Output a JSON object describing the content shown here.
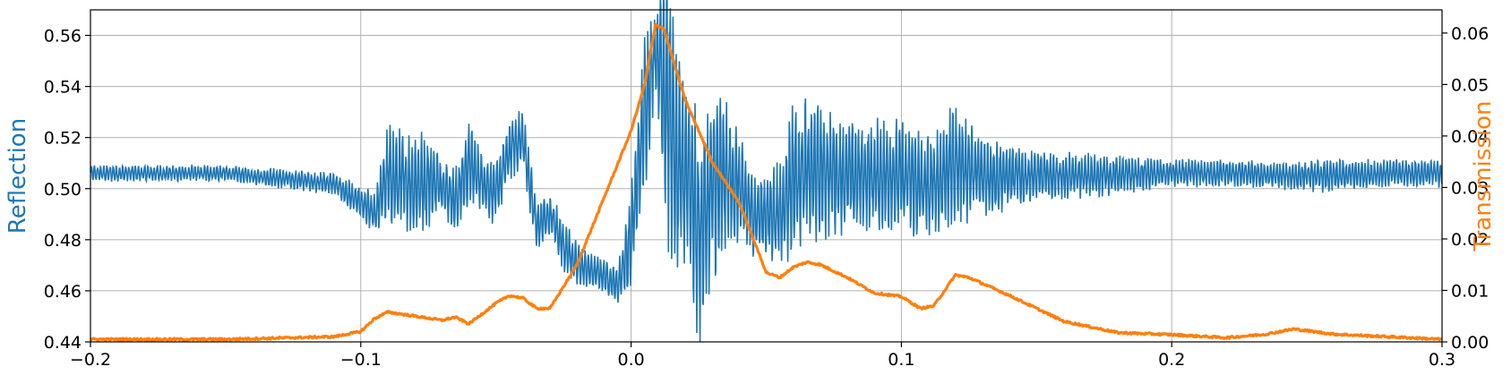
{
  "chart_data": {
    "type": "line",
    "title": "",
    "xlabel": "",
    "xlim": [
      -0.2,
      0.3
    ],
    "x_ticks": [
      -0.2,
      -0.1,
      0.0,
      0.1,
      0.2,
      0.3
    ],
    "x_tick_labels": [
      "−0.2",
      "−0.1",
      "0.0",
      "0.1",
      "0.2",
      "0.3"
    ],
    "grid": true,
    "legend": "none",
    "y_left": {
      "label": "Reflection",
      "color": "#1f77b4",
      "ylim": [
        0.44,
        0.57
      ],
      "ticks": [
        0.44,
        0.46,
        0.48,
        0.5,
        0.52,
        0.54,
        0.56
      ],
      "tick_labels": [
        "0.44",
        "0.46",
        "0.48",
        "0.50",
        "0.52",
        "0.54",
        "0.56"
      ]
    },
    "y_right": {
      "label": "Transmission",
      "color": "#ff7f0e",
      "ylim": [
        0.0,
        0.0645
      ],
      "ticks": [
        0.0,
        0.01,
        0.02,
        0.03,
        0.04,
        0.05,
        0.06
      ],
      "tick_labels": [
        "0.00",
        "0.01",
        "0.02",
        "0.03",
        "0.04",
        "0.05",
        "0.06"
      ]
    },
    "series": [
      {
        "axis": "left",
        "color": "#1f77b4",
        "x": [
          -0.2,
          -0.15,
          -0.11,
          -0.095,
          -0.09,
          -0.085,
          -0.08,
          -0.075,
          -0.07,
          -0.065,
          -0.06,
          -0.055,
          -0.05,
          -0.045,
          -0.04,
          -0.035,
          -0.03,
          -0.025,
          -0.02,
          -0.015,
          -0.01,
          -0.005,
          0.0,
          0.005,
          0.009,
          0.013,
          0.017,
          0.021,
          0.025,
          0.03,
          0.035,
          0.04,
          0.045,
          0.05,
          0.055,
          0.06,
          0.07,
          0.08,
          0.09,
          0.1,
          0.11,
          0.12,
          0.13,
          0.14,
          0.15,
          0.17,
          0.2,
          0.22,
          0.24,
          0.26,
          0.28,
          0.3
        ],
        "center": [
          0.506,
          0.506,
          0.502,
          0.49,
          0.505,
          0.503,
          0.502,
          0.503,
          0.502,
          0.495,
          0.51,
          0.503,
          0.498,
          0.515,
          0.52,
          0.485,
          0.49,
          0.478,
          0.47,
          0.468,
          0.466,
          0.462,
          0.48,
          0.53,
          0.555,
          0.54,
          0.505,
          0.51,
          0.48,
          0.5,
          0.505,
          0.5,
          0.49,
          0.49,
          0.49,
          0.505,
          0.507,
          0.505,
          0.505,
          0.505,
          0.5,
          0.51,
          0.505,
          0.505,
          0.505,
          0.505,
          0.506,
          0.506,
          0.505,
          0.505,
          0.506,
          0.506
        ],
        "amplitude": [
          0.003,
          0.003,
          0.004,
          0.008,
          0.018,
          0.018,
          0.018,
          0.018,
          0.01,
          0.012,
          0.015,
          0.01,
          0.012,
          0.012,
          0.01,
          0.01,
          0.008,
          0.01,
          0.008,
          0.006,
          0.006,
          0.006,
          0.02,
          0.03,
          0.015,
          0.055,
          0.04,
          0.035,
          0.04,
          0.035,
          0.03,
          0.02,
          0.015,
          0.015,
          0.02,
          0.03,
          0.025,
          0.02,
          0.02,
          0.02,
          0.02,
          0.022,
          0.015,
          0.012,
          0.01,
          0.008,
          0.005,
          0.005,
          0.005,
          0.006,
          0.005,
          0.005
        ]
      },
      {
        "axis": "right",
        "color": "#ff7f0e",
        "x": [
          -0.2,
          -0.15,
          -0.11,
          -0.1,
          -0.095,
          -0.09,
          -0.08,
          -0.07,
          -0.065,
          -0.06,
          -0.05,
          -0.045,
          -0.04,
          -0.035,
          -0.03,
          -0.02,
          -0.01,
          0.0,
          0.005,
          0.009,
          0.012,
          0.02,
          0.03,
          0.04,
          0.05,
          0.055,
          0.06,
          0.065,
          0.07,
          0.08,
          0.09,
          0.1,
          0.107,
          0.112,
          0.12,
          0.125,
          0.14,
          0.16,
          0.18,
          0.2,
          0.22,
          0.235,
          0.245,
          0.26,
          0.28,
          0.3
        ],
        "y": [
          0.0005,
          0.0005,
          0.001,
          0.002,
          0.0045,
          0.0058,
          0.005,
          0.0042,
          0.0048,
          0.0035,
          0.0075,
          0.009,
          0.0085,
          0.0065,
          0.0065,
          0.015,
          0.028,
          0.041,
          0.05,
          0.0615,
          0.061,
          0.047,
          0.035,
          0.027,
          0.0135,
          0.0125,
          0.0145,
          0.0155,
          0.015,
          0.0125,
          0.0095,
          0.0088,
          0.0065,
          0.007,
          0.013,
          0.0125,
          0.009,
          0.004,
          0.0018,
          0.0014,
          0.0008,
          0.0015,
          0.0025,
          0.0015,
          0.001,
          0.0005
        ]
      }
    ]
  }
}
